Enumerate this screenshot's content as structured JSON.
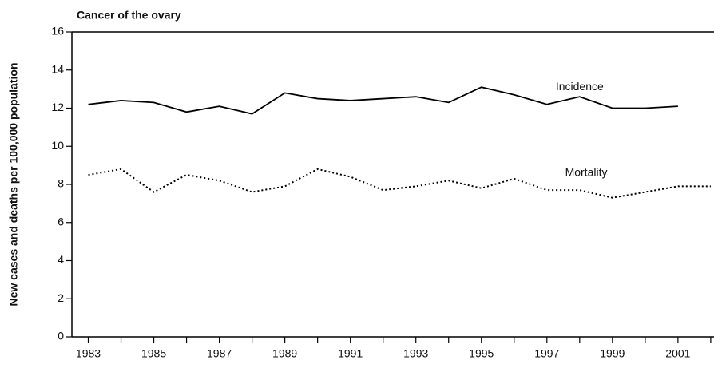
{
  "chart_data": {
    "type": "line",
    "title": "Cancer of the ovary",
    "ylabel": "New cases and deaths per 100,000 population",
    "x": [
      1983,
      1984,
      1985,
      1986,
      1987,
      1988,
      1989,
      1990,
      1991,
      1992,
      1993,
      1994,
      1995,
      1996,
      1997,
      1998,
      1999,
      2000,
      2001,
      2002
    ],
    "series": [
      {
        "name": "Incidence",
        "color": "#000000",
        "dash": "solid",
        "values": [
          12.2,
          12.4,
          12.3,
          11.8,
          12.1,
          11.7,
          12.8,
          12.5,
          12.4,
          12.5,
          12.6,
          12.3,
          13.1,
          12.7,
          12.2,
          12.6,
          12.0,
          12.0,
          12.1,
          null
        ]
      },
      {
        "name": "Mortality",
        "color": "#000000",
        "dash": "dotted",
        "values": [
          8.5,
          8.8,
          7.6,
          8.5,
          8.2,
          7.6,
          7.9,
          8.8,
          8.4,
          7.7,
          7.9,
          8.2,
          7.8,
          8.3,
          7.7,
          7.7,
          7.3,
          7.6,
          7.9,
          7.9
        ]
      }
    ],
    "annotations": [
      {
        "text": "Incidence",
        "x": 1998,
        "y": 13.1
      },
      {
        "text": "Mortality",
        "x": 1998.2,
        "y": 8.6
      }
    ],
    "xlim": [
      1982.5,
      2002.1
    ],
    "xticks": [
      1983,
      1985,
      1987,
      1989,
      1991,
      1993,
      1995,
      1997,
      1999,
      2001
    ],
    "xminor_ticks": [
      1984,
      1986,
      1988,
      1990,
      1992,
      1994,
      1996,
      1998,
      2000,
      2002
    ],
    "ylim": [
      0,
      16
    ],
    "yticks": [
      0,
      2,
      4,
      6,
      8,
      10,
      12,
      14,
      16
    ],
    "grid": false
  }
}
